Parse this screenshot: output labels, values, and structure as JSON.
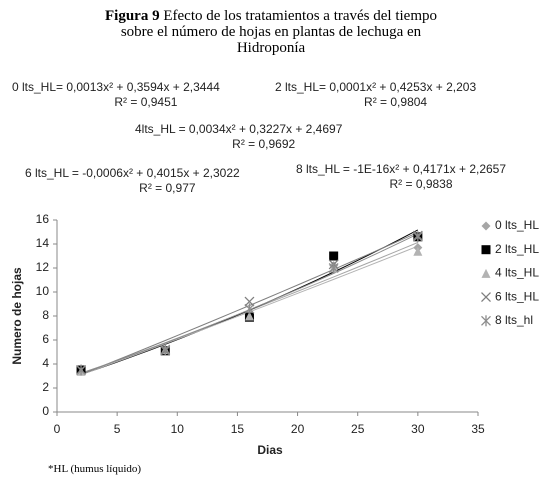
{
  "chart_data": {
    "type": "scatter",
    "title_bold": "Figura 9",
    "title": "Efecto de los tratamientos a través del tiempo sobre el número de hojas en plantas de lechuga en Hidroponía",
    "x_label": "Dias",
    "y_label": "Numero de hojas",
    "x": [
      2,
      9,
      16,
      23,
      30
    ],
    "series": [
      {
        "name": "0 lts_HL",
        "color": "#a6a6a6",
        "marker": "diamond",
        "values": [
          3.5,
          5.2,
          8.2,
          12.2,
          13.7
        ]
      },
      {
        "name": "2 lts_HL",
        "color": "#000000",
        "marker": "square",
        "values": [
          3.5,
          5.1,
          7.9,
          13.0,
          14.6
        ]
      },
      {
        "name": "4 lts_HL",
        "color": "#b3b3b3",
        "marker": "triangle",
        "values": [
          3.4,
          5.2,
          8.0,
          12.0,
          13.4
        ]
      },
      {
        "name": "6 lts_HL",
        "color": "#7f7f7f",
        "marker": "x",
        "values": [
          3.5,
          5.1,
          9.2,
          12.3,
          14.7
        ]
      },
      {
        "name": "8 lts_hl",
        "color": "#8c8c8c",
        "marker": "asterisk",
        "values": [
          3.5,
          5.2,
          8.6,
          12.0,
          14.6
        ]
      }
    ],
    "xlim": [
      0,
      35
    ],
    "xticks": [
      0,
      5,
      10,
      15,
      20,
      25,
      30,
      35
    ],
    "ylim": [
      0,
      16
    ],
    "yticks": [
      0,
      2,
      4,
      6,
      8,
      10,
      12,
      14,
      16
    ],
    "trendline": "polynomial",
    "annotations": [
      {
        "equation": "0 lts_HL= 0,0013x² + 0,3594x + 2,3444",
        "r2": "R² = 0,9451"
      },
      {
        "equation": "2 lts_HL= 0,0001x² + 0,4253x + 2,203",
        "r2": "R² = 0,9804"
      },
      {
        "equation": "4lts_HL = 0,0034x² + 0,3227x + 2,4697",
        "r2": "R² = 0,9692"
      },
      {
        "equation": "6 lts_HL = -0,0006x² + 0,4015x + 2,3022",
        "r2": "R² = 0,977"
      },
      {
        "equation": "8 lts_HL = -1E-16x² + 0,4171x + 2,2657",
        "r2": "R² = 0,9838"
      }
    ],
    "footnote": "*HL  (humus líquido)"
  }
}
